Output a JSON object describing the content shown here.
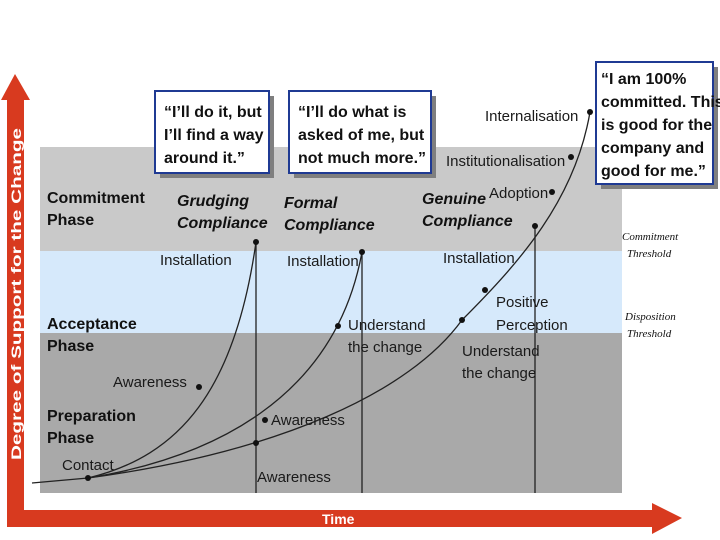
{
  "phases": {
    "commitment": [
      "Commitment",
      "Phase"
    ],
    "acceptance": [
      "Acceptance",
      "Phase"
    ],
    "preparation": [
      "Preparation",
      "Phase"
    ]
  },
  "compliance": {
    "grudging": [
      "Grudging",
      "Compliance"
    ],
    "formal": [
      "Formal",
      "Compliance"
    ],
    "genuine": [
      "Genuine",
      "Compliance"
    ]
  },
  "quotes": {
    "grudging": [
      "“I’ll do it, but",
      "I’ll find a way",
      "around it.”"
    ],
    "formal": [
      "“I’ll do what is",
      "asked of me, but",
      "not much more.”"
    ],
    "committed": [
      "“I am 100%",
      "committed. This",
      "is good for the",
      "company and",
      "good for me.”"
    ]
  },
  "curve_labels": {
    "internalisation": "Internalisation",
    "institutionalisation": "Institutionalisation",
    "adoption": "Adoption",
    "installation_1": "Installation",
    "installation_2": "Installation",
    "installation_3": "Installation",
    "positive_perception": [
      "Positive",
      "Perception"
    ],
    "understand_1": [
      "Understand",
      "the change"
    ],
    "understand_2": [
      "Understand",
      "the change"
    ],
    "awareness_1": "Awareness",
    "awareness_2": "Awareness",
    "awareness_3": "Awareness",
    "contact": "Contact"
  },
  "thresholds": {
    "commitment": [
      "Commitment",
      "Threshold"
    ],
    "disposition": [
      "Disposition",
      "Threshold"
    ]
  },
  "axes": {
    "y_label": "Degree of Support for the Change",
    "x_label": "Time"
  },
  "colors": {
    "commitment_band": "#c9c9c9",
    "acceptance_band": "#d6e9fb",
    "preparation_band": "#a9a9a9",
    "axis_red": "#d83a1f"
  }
}
